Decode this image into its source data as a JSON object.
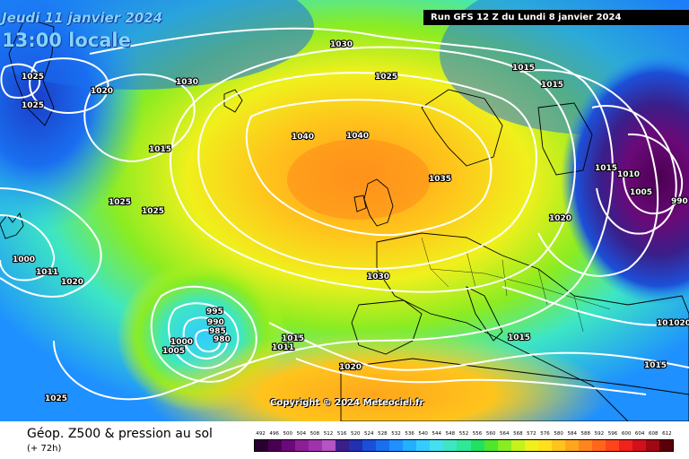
{
  "header": {
    "date": "Jeudi 11 janvier 2024",
    "time": "13:00 locale",
    "run": "Run GFS 12 Z du Lundi 8 janvier 2024"
  },
  "copyright": "Copyright © 2024 Meteociel.fr",
  "legend": {
    "title": "Géop. Z500 & pression au sol",
    "lead": "(+ 72h)",
    "scale": [
      {
        "value": "492",
        "color": "#2a0030"
      },
      {
        "value": "496",
        "color": "#4a0052"
      },
      {
        "value": "500",
        "color": "#6a0a78"
      },
      {
        "value": "504",
        "color": "#8a1f96"
      },
      {
        "value": "508",
        "color": "#a033ad"
      },
      {
        "value": "512",
        "color": "#b455c4"
      },
      {
        "value": "516",
        "color": "#3a1f8a"
      },
      {
        "value": "520",
        "color": "#2030b0"
      },
      {
        "value": "524",
        "color": "#1c4fd8"
      },
      {
        "value": "528",
        "color": "#1a6ef0"
      },
      {
        "value": "532",
        "color": "#1e90ff"
      },
      {
        "value": "536",
        "color": "#22b0ff"
      },
      {
        "value": "540",
        "color": "#33ccff"
      },
      {
        "value": "544",
        "color": "#44e0f0"
      },
      {
        "value": "548",
        "color": "#3de6c4"
      },
      {
        "value": "552",
        "color": "#2ee896"
      },
      {
        "value": "556",
        "color": "#22e060"
      },
      {
        "value": "560",
        "color": "#4fe62c"
      },
      {
        "value": "564",
        "color": "#8aec22"
      },
      {
        "value": "568",
        "color": "#c4f21c"
      },
      {
        "value": "572",
        "color": "#f0f01c"
      },
      {
        "value": "576",
        "color": "#ffe01c"
      },
      {
        "value": "580",
        "color": "#ffc41c"
      },
      {
        "value": "584",
        "color": "#ffa61c"
      },
      {
        "value": "588",
        "color": "#ff861c"
      },
      {
        "value": "592",
        "color": "#ff661c"
      },
      {
        "value": "596",
        "color": "#ff441c"
      },
      {
        "value": "600",
        "color": "#f0221c"
      },
      {
        "value": "604",
        "color": "#d0101c"
      },
      {
        "value": "608",
        "color": "#a00814"
      },
      {
        "value": "612",
        "color": "#5a0008"
      }
    ]
  },
  "map": {
    "fields": {
      "z500_gradient": [
        "#1a3ec8",
        "#1e90ff",
        "#33ccff",
        "#3de6c4",
        "#22e060",
        "#c4f21c",
        "#ffe01c",
        "#ffa61c"
      ],
      "trough_west": "#1a6ef0",
      "ridge_core": "#ff9a1c",
      "low_east": "#4a0052",
      "cutoff_low": "#33ccff"
    },
    "isobar_labels": [
      {
        "id": "1030-north",
        "text": "1030"
      },
      {
        "id": "1025-north",
        "text": "1025"
      },
      {
        "id": "1015-northeast",
        "text": "1015"
      },
      {
        "id": "1015-norway",
        "text": "1015"
      },
      {
        "id": "1025-west-a",
        "text": "1025"
      },
      {
        "id": "1020-west",
        "text": "1020"
      },
      {
        "id": "1030-nw",
        "text": "1030"
      },
      {
        "id": "1025-west-b",
        "text": "1025"
      },
      {
        "id": "1015-west",
        "text": "1015"
      },
      {
        "id": "1040-a",
        "text": "1040"
      },
      {
        "id": "1040-b",
        "text": "1040"
      },
      {
        "id": "1035",
        "text": "1035"
      },
      {
        "id": "1015-east",
        "text": "1015"
      },
      {
        "id": "1010-east",
        "text": "1010"
      },
      {
        "id": "1005-east",
        "text": "1005"
      },
      {
        "id": "990-east",
        "text": "990"
      },
      {
        "id": "1020-central",
        "text": "1020"
      },
      {
        "id": "1025-atl-a",
        "text": "1025"
      },
      {
        "id": "1025-atl-b",
        "text": "1025"
      },
      {
        "id": "1030-biscay",
        "text": "1030"
      },
      {
        "id": "1000-west",
        "text": "1000"
      },
      {
        "id": "1011-west",
        "text": "1011"
      },
      {
        "id": "1020-sw",
        "text": "1020"
      },
      {
        "id": "995",
        "text": "995"
      },
      {
        "id": "990-low",
        "text": "990"
      },
      {
        "id": "985",
        "text": "985"
      },
      {
        "id": "980",
        "text": "980"
      },
      {
        "id": "1000-low",
        "text": "1000"
      },
      {
        "id": "1005-low",
        "text": "1005"
      },
      {
        "id": "1015-azores",
        "text": "1015"
      },
      {
        "id": "1011-azores",
        "text": "1011"
      },
      {
        "id": "1020-south",
        "text": "1020"
      },
      {
        "id": "1015-med",
        "text": "1015"
      },
      {
        "id": "1010-se",
        "text": "1010"
      },
      {
        "id": "1020-se",
        "text": "1020"
      },
      {
        "id": "1015-se",
        "text": "1015"
      },
      {
        "id": "1025-sw",
        "text": "1025"
      }
    ]
  }
}
